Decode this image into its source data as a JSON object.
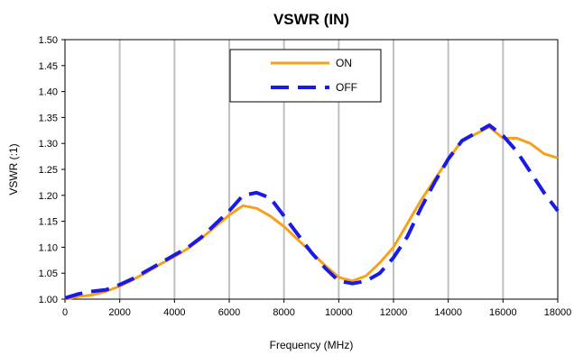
{
  "chart_data": {
    "type": "line",
    "title": "VSWR (IN)",
    "xlabel": "Frequency (MHz)",
    "ylabel": "VSWR (:1)",
    "xlim": [
      0,
      18000
    ],
    "ylim": [
      1.0,
      1.5
    ],
    "x_ticks": [
      "0",
      "2000",
      "4000",
      "6000",
      "8000",
      "10000",
      "12000",
      "14000",
      "16000",
      "18000"
    ],
    "y_ticks": [
      "1.00",
      "1.05",
      "1.10",
      "1.15",
      "1.20",
      "1.25",
      "1.30",
      "1.35",
      "1.40",
      "1.45",
      "1.50"
    ],
    "grid": "vertical",
    "legend_position": "top-center",
    "series": [
      {
        "name": "ON",
        "color": "#f7a11a",
        "style": "solid",
        "points": [
          [
            0,
            1.0
          ],
          [
            500,
            1.005
          ],
          [
            1000,
            1.008
          ],
          [
            1500,
            1.015
          ],
          [
            2000,
            1.025
          ],
          [
            2500,
            1.038
          ],
          [
            3000,
            1.052
          ],
          [
            3500,
            1.068
          ],
          [
            4000,
            1.082
          ],
          [
            4500,
            1.098
          ],
          [
            5000,
            1.118
          ],
          [
            5500,
            1.14
          ],
          [
            6000,
            1.162
          ],
          [
            6500,
            1.18
          ],
          [
            7000,
            1.175
          ],
          [
            7500,
            1.16
          ],
          [
            8000,
            1.14
          ],
          [
            8500,
            1.115
          ],
          [
            9000,
            1.09
          ],
          [
            9500,
            1.065
          ],
          [
            10000,
            1.042
          ],
          [
            10500,
            1.035
          ],
          [
            11000,
            1.045
          ],
          [
            11500,
            1.07
          ],
          [
            12000,
            1.1
          ],
          [
            12500,
            1.145
          ],
          [
            13000,
            1.19
          ],
          [
            13500,
            1.23
          ],
          [
            14000,
            1.27
          ],
          [
            14500,
            1.305
          ],
          [
            15000,
            1.318
          ],
          [
            15500,
            1.332
          ],
          [
            16000,
            1.31
          ],
          [
            16500,
            1.31
          ],
          [
            17000,
            1.3
          ],
          [
            17500,
            1.28
          ],
          [
            18000,
            1.272
          ]
        ]
      },
      {
        "name": "OFF",
        "color": "#1a1ae6",
        "style": "dashed",
        "points": [
          [
            0,
            1.002
          ],
          [
            500,
            1.01
          ],
          [
            1000,
            1.015
          ],
          [
            1500,
            1.018
          ],
          [
            2000,
            1.028
          ],
          [
            2500,
            1.04
          ],
          [
            3000,
            1.055
          ],
          [
            3500,
            1.07
          ],
          [
            4000,
            1.085
          ],
          [
            4500,
            1.1
          ],
          [
            5000,
            1.12
          ],
          [
            5500,
            1.145
          ],
          [
            6000,
            1.17
          ],
          [
            6500,
            1.2
          ],
          [
            7000,
            1.205
          ],
          [
            7500,
            1.195
          ],
          [
            8000,
            1.16
          ],
          [
            8500,
            1.125
          ],
          [
            9000,
            1.09
          ],
          [
            9500,
            1.06
          ],
          [
            10000,
            1.035
          ],
          [
            10500,
            1.03
          ],
          [
            11000,
            1.035
          ],
          [
            11500,
            1.05
          ],
          [
            12000,
            1.08
          ],
          [
            12500,
            1.12
          ],
          [
            13000,
            1.175
          ],
          [
            13500,
            1.225
          ],
          [
            14000,
            1.27
          ],
          [
            14500,
            1.305
          ],
          [
            15000,
            1.32
          ],
          [
            15500,
            1.335
          ],
          [
            16000,
            1.315
          ],
          [
            16500,
            1.285
          ],
          [
            17000,
            1.245
          ],
          [
            17500,
            1.205
          ],
          [
            18000,
            1.17
          ]
        ]
      }
    ]
  }
}
